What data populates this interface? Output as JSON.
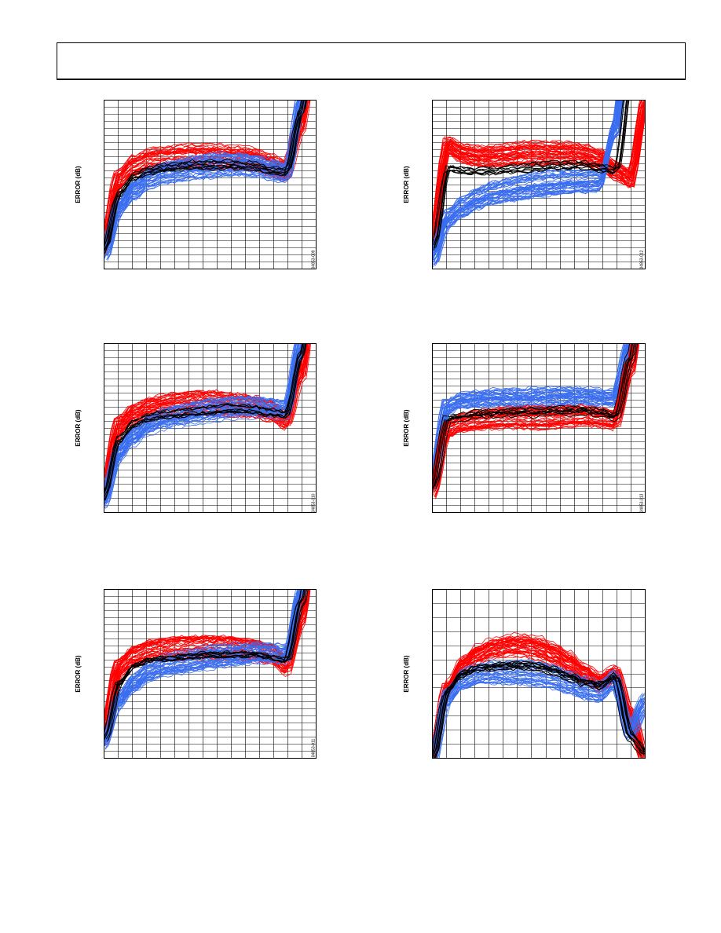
{
  "colors": {
    "red": "#ff0000",
    "blue": "#3a6ef0",
    "black": "#000000",
    "grid": "#000000"
  },
  "chart_data": [
    {
      "type": "line",
      "ylabel": "ERROR (dB)",
      "figure_id": "04853-009",
      "grid": true,
      "x_divisions": 15,
      "y_divisions": 24,
      "series": [
        {
          "color": "red",
          "count": 40,
          "values": [
            -22,
            2,
            7,
            9,
            9.5,
            10,
            10,
            10,
            9.8,
            9.5,
            9,
            7,
            5,
            22,
            60
          ]
        },
        {
          "color": "blue",
          "count": 40,
          "values": [
            -24,
            -8,
            -2,
            2,
            4,
            5,
            6,
            6.5,
            7,
            7,
            6.5,
            5,
            4,
            30,
            70
          ]
        },
        {
          "color": "black",
          "count": 8,
          "values": [
            -23,
            -3,
            3,
            5,
            6,
            6.5,
            7,
            7,
            7,
            7,
            6.5,
            5,
            4.5,
            26,
            65
          ]
        }
      ]
    },
    {
      "type": "line",
      "ylabel": "ERROR (dB)",
      "figure_id": "04853-012",
      "grid": true,
      "x_divisions": 15,
      "y_divisions": 24,
      "series": [
        {
          "color": "red",
          "count": 45,
          "values": [
            -20,
            14,
            11,
            10,
            10,
            10.5,
            11,
            11,
            11,
            11,
            10.5,
            9,
            5,
            2,
            30
          ]
        },
        {
          "color": "blue",
          "count": 45,
          "values": [
            -26,
            -12,
            -8,
            -5,
            -3,
            -2,
            -1,
            0,
            0.5,
            1,
            1,
            1.5,
            20,
            60,
            80
          ]
        },
        {
          "color": "black",
          "count": 8,
          "values": [
            -22,
            6,
            5,
            5,
            5,
            5.5,
            6,
            6.5,
            7,
            7,
            7,
            6,
            5,
            40,
            80
          ]
        }
      ]
    },
    {
      "type": "line",
      "ylabel": "ERROR (dB)",
      "figure_id": "04853-010",
      "grid": true,
      "x_divisions": 15,
      "y_divisions": 24,
      "series": [
        {
          "color": "red",
          "count": 40,
          "values": [
            -23,
            1,
            5,
            7,
            8,
            8.5,
            9,
            9,
            8.5,
            8,
            7.5,
            6,
            3,
            20,
            60
          ]
        },
        {
          "color": "blue",
          "count": 40,
          "values": [
            -26,
            -9,
            -3,
            1,
            3,
            4,
            5,
            6,
            6.5,
            7,
            7,
            6.5,
            6,
            30,
            70
          ]
        },
        {
          "color": "black",
          "count": 8,
          "values": [
            -24,
            -4,
            2,
            4,
            5,
            5.5,
            6,
            6.5,
            7,
            7,
            6.5,
            5.5,
            5,
            26,
            65
          ]
        }
      ]
    },
    {
      "type": "line",
      "ylabel": "ERROR (dB)",
      "figure_id": "04853-013",
      "grid": true,
      "x_divisions": 15,
      "y_divisions": 24,
      "series": [
        {
          "color": "blue",
          "count": 40,
          "values": [
            -20,
            8,
            10,
            10.5,
            11,
            11,
            11,
            11,
            11.5,
            11.5,
            11.5,
            11,
            11,
            30,
            70
          ]
        },
        {
          "color": "red",
          "count": 40,
          "values": [
            -22,
            0,
            2,
            3,
            3.5,
            4,
            4,
            4,
            4,
            4.5,
            4.5,
            4,
            3,
            22,
            60
          ]
        },
        {
          "color": "black",
          "count": 8,
          "values": [
            -21,
            3,
            4,
            5,
            5,
            5.5,
            5.5,
            5.5,
            6,
            6,
            6,
            5.5,
            4,
            25,
            65
          ]
        }
      ]
    },
    {
      "type": "line",
      "ylabel": "ERROR (dB)",
      "figure_id": "04853-011",
      "grid": true,
      "x_divisions": 15,
      "y_divisions": 24,
      "series": [
        {
          "color": "red",
          "count": 40,
          "values": [
            -22,
            2,
            6,
            8,
            8.5,
            9,
            9,
            9,
            9,
            8.5,
            8,
            7,
            3,
            20,
            60
          ]
        },
        {
          "color": "blue",
          "count": 40,
          "values": [
            -24,
            -9,
            -3,
            1,
            3,
            4,
            5,
            6,
            6.5,
            7,
            7.5,
            7.5,
            7,
            30,
            70
          ]
        },
        {
          "color": "black",
          "count": 8,
          "values": [
            -23,
            -3,
            3,
            5,
            5.5,
            6,
            6.5,
            7,
            7,
            7,
            7,
            6,
            5,
            26,
            65
          ]
        }
      ]
    },
    {
      "type": "line",
      "ylabel": "ERROR (dB)",
      "figure_id": "04853-014",
      "grid": true,
      "x_divisions": 15,
      "y_divisions": 12,
      "series": [
        {
          "color": "red",
          "count": 45,
          "values": [
            -30,
            -5,
            3,
            7,
            9,
            10,
            10,
            9,
            7,
            4,
            0,
            -3,
            0,
            -15,
            -30
          ]
        },
        {
          "color": "blue",
          "count": 35,
          "values": [
            -30,
            -8,
            -2,
            0,
            0.5,
            0.5,
            0.5,
            0,
            -1,
            -3,
            -5,
            -6,
            -2,
            -20,
            -10
          ]
        },
        {
          "color": "black",
          "count": 10,
          "values": [
            -30,
            -6,
            0,
            2,
            2.5,
            3,
            3,
            2.5,
            1,
            -1,
            -3,
            -4,
            -1,
            -22,
            -28
          ]
        }
      ]
    }
  ]
}
